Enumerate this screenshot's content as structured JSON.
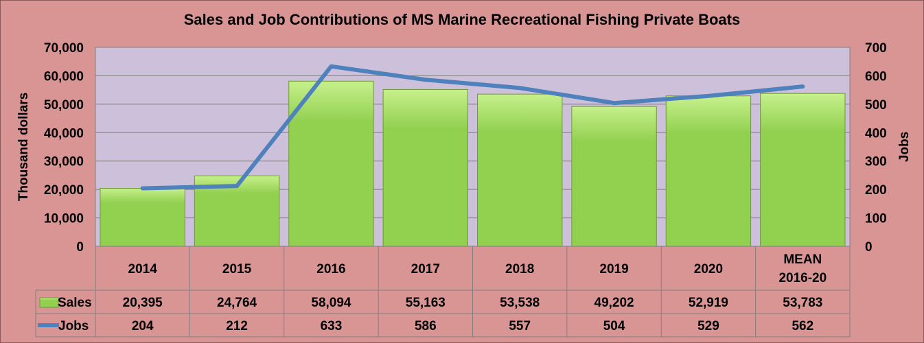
{
  "chart_data": {
    "type": "bar",
    "title": "Sales and Job Contributions of MS Marine Recreational Fishing Private Boats",
    "categories": [
      [
        "2014"
      ],
      [
        "2015"
      ],
      [
        "2016"
      ],
      [
        "2017"
      ],
      [
        "2018"
      ],
      [
        "2019"
      ],
      [
        "2020"
      ],
      [
        "MEAN",
        "2016-20"
      ]
    ],
    "series": [
      {
        "name": "Sales",
        "type": "bar",
        "axis": "left",
        "values": [
          20395,
          24764,
          58094,
          55163,
          53538,
          49202,
          52919,
          53783
        ]
      },
      {
        "name": "Jobs",
        "type": "line",
        "axis": "right",
        "values": [
          204,
          212,
          633,
          586,
          557,
          504,
          529,
          562
        ]
      }
    ],
    "ylabel": "Thousand dollars",
    "y2label": "Jobs",
    "ylim": [
      0,
      70000
    ],
    "y2lim": [
      0,
      700
    ],
    "yticks": [
      "0",
      "10,000",
      "20,000",
      "30,000",
      "40,000",
      "50,000",
      "60,000",
      "70,000"
    ],
    "y2ticks": [
      "0",
      "100",
      "200",
      "300",
      "400",
      "500",
      "600",
      "700"
    ],
    "data_table_values": {
      "Sales": [
        "20,395",
        "24,764",
        "58,094",
        "55,163",
        "53,538",
        "49,202",
        "52,919",
        "53,783"
      ],
      "Jobs": [
        "204",
        "212",
        "633",
        "586",
        "557",
        "504",
        "529",
        "562"
      ]
    },
    "grid": true,
    "legend": "data-table",
    "colors": {
      "background": "#d99594",
      "plot_area": "#ccc0da",
      "bar_fill": "#92d050",
      "bar_fill_light": "#c6f08c",
      "line": "#4f81bd",
      "grid": "#808080"
    }
  }
}
